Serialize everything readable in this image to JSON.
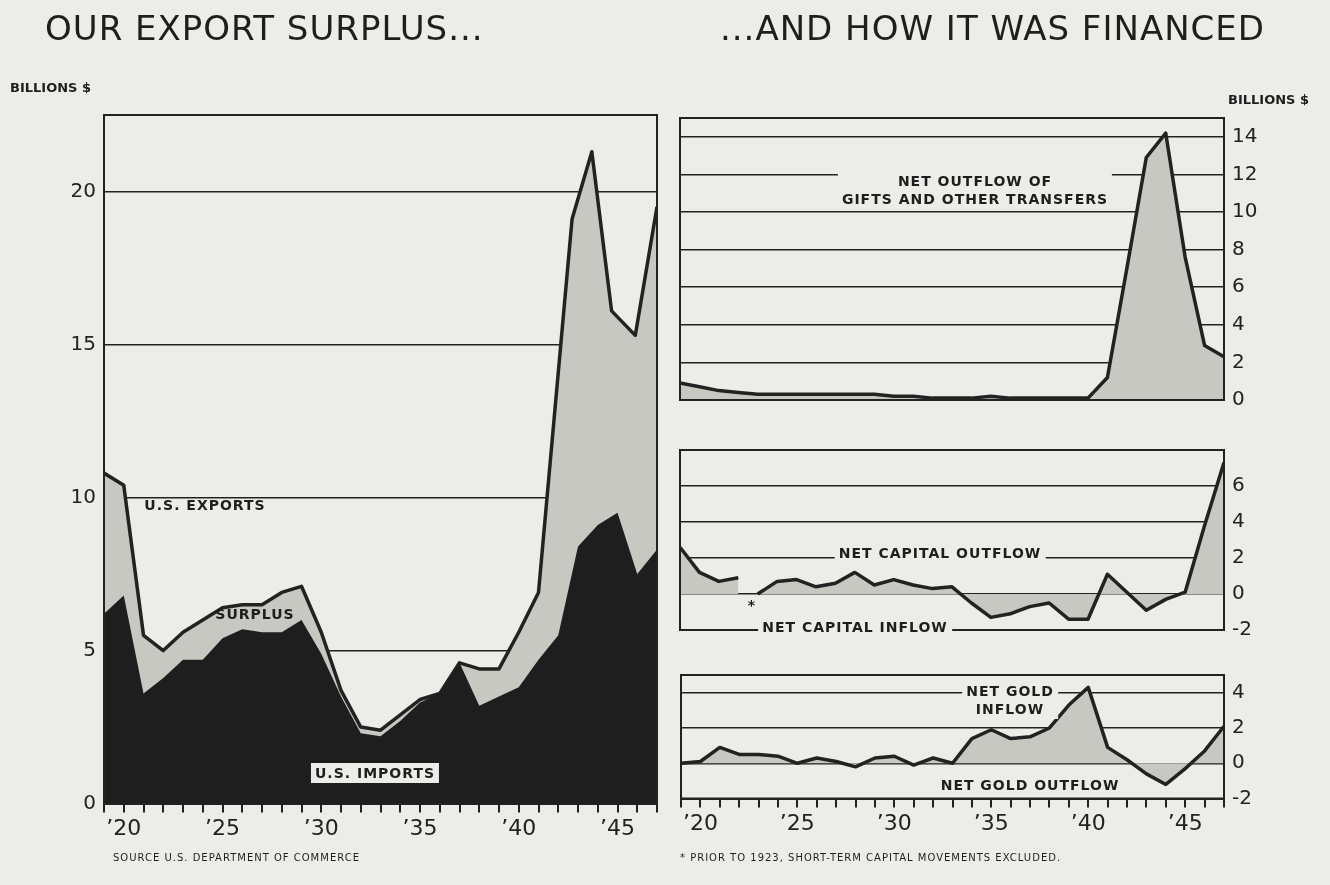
{
  "chart_data": [
    {
      "type": "area",
      "title": "OUR EXPORT SURPLUS...",
      "ylabel": "BILLIONS $",
      "xlim": [
        1919,
        1947
      ],
      "ylim": [
        0,
        22.5
      ],
      "yticks": [
        0,
        5,
        10,
        15,
        20
      ],
      "xticks": [
        {
          "value": 1919,
          "label": null
        },
        {
          "value": 1920,
          "label": "’20"
        },
        {
          "value": 1921,
          "label": null
        },
        {
          "value": 1922,
          "label": null
        },
        {
          "value": 1923,
          "label": null
        },
        {
          "value": 1924,
          "label": null
        },
        {
          "value": 1925,
          "label": "’25"
        },
        {
          "value": 1926,
          "label": null
        },
        {
          "value": 1927,
          "label": null
        },
        {
          "value": 1928,
          "label": null
        },
        {
          "value": 1929,
          "label": null
        },
        {
          "value": 1930,
          "label": "’30"
        },
        {
          "value": 1931,
          "label": null
        },
        {
          "value": 1932,
          "label": null
        },
        {
          "value": 1933,
          "label": null
        },
        {
          "value": 1934,
          "label": null
        },
        {
          "value": 1935,
          "label": "’35"
        },
        {
          "value": 1936,
          "label": null
        },
        {
          "value": 1937,
          "label": null
        },
        {
          "value": 1938,
          "label": null
        },
        {
          "value": 1939,
          "label": null
        },
        {
          "value": 1940,
          "label": "’40"
        },
        {
          "value": 1941,
          "label": null
        },
        {
          "value": 1942,
          "label": null
        },
        {
          "value": 1943,
          "label": null
        },
        {
          "value": 1944,
          "label": null
        },
        {
          "value": 1945,
          "label": "’45"
        },
        {
          "value": 1946,
          "label": null
        },
        {
          "value": 1947,
          "label": null
        }
      ],
      "grid": "y",
      "legend": false,
      "series": [
        {
          "color": "#c8c8c3",
          "x": [
            1919,
            1920,
            1921,
            1922,
            1923,
            1924,
            1925,
            1926,
            1927,
            1928,
            1929,
            1930,
            1931,
            1932,
            1933,
            1934,
            1935,
            1936,
            1937,
            1938,
            1939,
            1940,
            1941,
            1942.7,
            1943.7,
            1944.7,
            1945.9,
            1947
          ],
          "values": [
            10.8,
            10.4,
            5.5,
            5.0,
            5.6,
            6.0,
            6.4,
            6.5,
            6.5,
            6.9,
            7.1,
            5.6,
            3.7,
            2.5,
            2.4,
            2.9,
            3.4,
            3.6,
            4.6,
            4.4,
            4.4,
            5.6,
            6.9,
            19.1,
            21.3,
            16.1,
            15.3,
            19.5
          ]
        },
        {
          "color": "#1e1e1e",
          "x": [
            1919,
            1920,
            1921,
            1922,
            1923,
            1924,
            1925,
            1926,
            1927,
            1928,
            1929,
            1930,
            1931,
            1932,
            1933,
            1934,
            1935,
            1936,
            1937,
            1938,
            1939,
            1940,
            1941,
            1942,
            1943,
            1944,
            1945,
            1946,
            1947
          ],
          "values": [
            6.2,
            6.8,
            3.6,
            4.1,
            4.7,
            4.7,
            5.4,
            5.7,
            5.6,
            5.6,
            6.0,
            4.9,
            3.5,
            2.3,
            2.2,
            2.7,
            3.3,
            3.6,
            4.6,
            3.2,
            3.5,
            3.8,
            4.7,
            5.5,
            8.4,
            9.1,
            9.5,
            7.5,
            8.3
          ]
        }
      ],
      "annotations": [
        "U.S. EXPORTS",
        "SURPLUS",
        "U.S. IMPORTS",
        "SOURCE U.S. DEPARTMENT OF COMMERCE"
      ]
    },
    {
      "type": "area",
      "title": "...AND HOW IT WAS FINANCED",
      "ylabel": "BILLIONS $",
      "xlim": [
        1919,
        1947
      ],
      "ylim": [
        0,
        15
      ],
      "yticks": [
        0,
        2,
        4,
        6,
        8,
        10,
        12,
        14
      ],
      "grid": "y",
      "legend": false,
      "tick_labels": "y",
      "series": [
        {
          "color": "#c8c8c3",
          "x": [
            1919,
            1920,
            1921,
            1922,
            1923,
            1924,
            1925,
            1926,
            1927,
            1928,
            1929,
            1930,
            1931,
            1932,
            1933,
            1934,
            1935,
            1936,
            1937,
            1938,
            1939,
            1940,
            1941,
            1942,
            1943,
            1944,
            1945,
            1946,
            1947
          ],
          "values": [
            0.9,
            0.7,
            0.5,
            0.4,
            0.3,
            0.3,
            0.3,
            0.3,
            0.3,
            0.3,
            0.3,
            0.2,
            0.2,
            0.1,
            0.1,
            0.1,
            0.2,
            0.1,
            0.1,
            0.1,
            0.1,
            0.1,
            1.2,
            7.0,
            12.9,
            14.2,
            7.6,
            2.9,
            2.3
          ]
        }
      ],
      "annotations": [
        "NET OUTFLOW OF\nGIFTS AND OTHER TRANSFERS"
      ]
    },
    {
      "type": "area",
      "xlim": [
        1919,
        1947
      ],
      "ylim": [
        -2,
        8
      ],
      "yticks": [
        -2,
        0,
        2,
        4,
        6
      ],
      "grid": "y",
      "legend": false,
      "tick_labels": "y",
      "series": [
        {
          "color": "#c8c8c3",
          "x": [
            1919,
            1920,
            1921,
            1922,
            1922.5,
            1923,
            1924,
            1925,
            1926,
            1927,
            1928,
            1929,
            1930,
            1931,
            1932,
            1933,
            1934,
            1935,
            1936,
            1937,
            1938,
            1939,
            1940,
            1941,
            1942,
            1943,
            1944,
            1945,
            1946,
            1947
          ],
          "values": [
            2.6,
            1.2,
            0.7,
            0.9,
            null,
            0.0,
            0.7,
            0.8,
            0.4,
            0.6,
            1.2,
            0.5,
            0.8,
            0.5,
            0.3,
            0.4,
            -0.5,
            -1.3,
            -1.1,
            -0.7,
            -0.5,
            -1.4,
            -1.4,
            1.1,
            0.1,
            -0.9,
            -0.3,
            0.1,
            3.8,
            7.3
          ]
        }
      ],
      "annotations": [
        "NET CAPITAL OUTFLOW",
        "NET CAPITAL INFLOW",
        "*"
      ]
    },
    {
      "type": "area",
      "xlim": [
        1919,
        1947
      ],
      "ylim": [
        -2,
        5
      ],
      "yticks": [
        -2,
        0,
        2,
        4
      ],
      "grid": "y",
      "legend": false,
      "xticks": [
        {
          "value": 1919,
          "label": null
        },
        {
          "value": 1920,
          "label": "’20"
        },
        {
          "value": 1921,
          "label": null
        },
        {
          "value": 1922,
          "label": null
        },
        {
          "value": 1923,
          "label": null
        },
        {
          "value": 1924,
          "label": null
        },
        {
          "value": 1925,
          "label": "’25"
        },
        {
          "value": 1926,
          "label": null
        },
        {
          "value": 1927,
          "label": null
        },
        {
          "value": 1928,
          "label": null
        },
        {
          "value": 1929,
          "label": null
        },
        {
          "value": 1930,
          "label": "’30"
        },
        {
          "value": 1931,
          "label": null
        },
        {
          "value": 1932,
          "label": null
        },
        {
          "value": 1933,
          "label": null
        },
        {
          "value": 1934,
          "label": null
        },
        {
          "value": 1935,
          "label": "’35"
        },
        {
          "value": 1936,
          "label": null
        },
        {
          "value": 1937,
          "label": null
        },
        {
          "value": 1938,
          "label": null
        },
        {
          "value": 1939,
          "label": null
        },
        {
          "value": 1940,
          "label": "’40"
        },
        {
          "value": 1941,
          "label": null
        },
        {
          "value": 1942,
          "label": null
        },
        {
          "value": 1943,
          "label": null
        },
        {
          "value": 1944,
          "label": null
        },
        {
          "value": 1945,
          "label": "’45"
        },
        {
          "value": 1946,
          "label": null
        },
        {
          "value": 1947,
          "label": null
        }
      ],
      "series": [
        {
          "color": "#c8c8c3",
          "x": [
            1919,
            1920,
            1921,
            1922,
            1923,
            1924,
            1925,
            1926,
            1927,
            1928,
            1929,
            1930,
            1931,
            1932,
            1933,
            1934,
            1935,
            1936,
            1937,
            1938,
            1939,
            1940,
            1941,
            1942,
            1943,
            1944,
            1945,
            1946,
            1947
          ],
          "values": [
            0.0,
            0.1,
            0.9,
            0.5,
            0.5,
            0.4,
            0.0,
            0.3,
            0.1,
            -0.2,
            0.3,
            0.4,
            -0.1,
            0.3,
            0.0,
            1.4,
            1.9,
            1.4,
            1.5,
            2.0,
            3.3,
            4.3,
            0.9,
            0.2,
            -0.6,
            -1.2,
            -0.3,
            0.7,
            2.1
          ]
        }
      ],
      "annotations": [
        "NET GOLD\nINFLOW",
        "NET GOLD OUTFLOW",
        "* PRIOR TO 1923, SHORT-TERM CAPITAL MOVEMENTS EXCLUDED."
      ]
    }
  ]
}
